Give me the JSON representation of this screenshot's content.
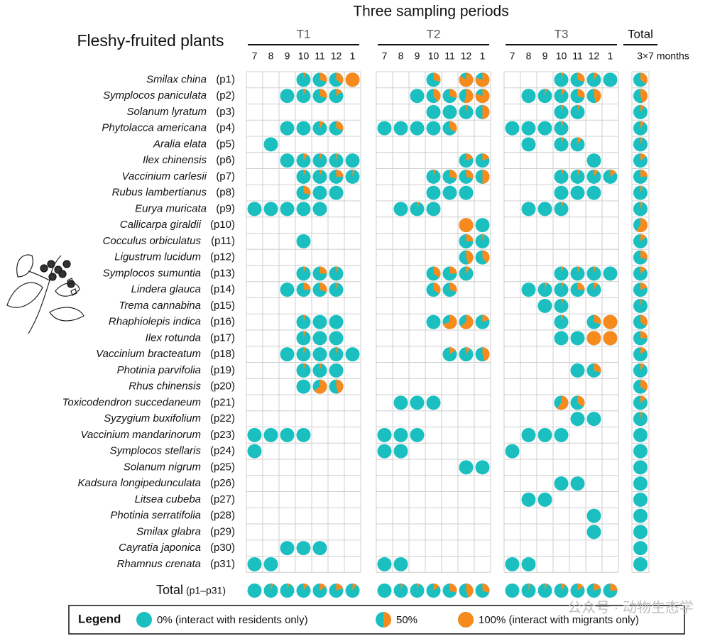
{
  "chart_data": {
    "type": "table",
    "title": "Three sampling periods",
    "row_header": "Fleshy-fruited plants",
    "total_header": "Total",
    "total_subheader": "3×7 months",
    "total_row_label": "Total",
    "total_row_sublabel": "(p1–p31)",
    "periods": [
      {
        "name": "T1",
        "months": [
          "7",
          "8",
          "9",
          "10",
          "11",
          "12",
          "1"
        ]
      },
      {
        "name": "T2",
        "months": [
          "7",
          "8",
          "9",
          "10",
          "11",
          "12",
          "1"
        ]
      },
      {
        "name": "T3",
        "months": [
          "7",
          "8",
          "9",
          "10",
          "11",
          "12",
          "1"
        ]
      }
    ],
    "value_meaning": "proportion of interactions with migrants (0 = residents only, 1 = migrants only); null = no record",
    "plants": [
      {
        "species": "Smilax china",
        "id": "(p1)",
        "T1": [
          null,
          null,
          null,
          0.05,
          0.3,
          0.35,
          1
        ],
        "T2": [
          null,
          null,
          null,
          0.3,
          null,
          0.85,
          0.8
        ],
        "T3": [
          null,
          null,
          null,
          0.05,
          0.3,
          0.1,
          0
        ],
        "total": 0.35
      },
      {
        "species": "Symplocos paniculata",
        "id": "(p2)",
        "T1": [
          null,
          null,
          0,
          0.05,
          0.3,
          0.15,
          null
        ],
        "T2": [
          null,
          null,
          0,
          0.4,
          0.3,
          0.55,
          0.8
        ],
        "T3": [
          null,
          0,
          0.05,
          0.1,
          0.3,
          0.45,
          null
        ],
        "total": 0.45
      },
      {
        "species": "Solanum lyratum",
        "id": "(p3)",
        "T1": [
          null,
          null,
          null,
          null,
          null,
          null,
          null
        ],
        "T2": [
          null,
          null,
          null,
          0,
          0,
          0.05,
          0.5
        ],
        "T3": [
          null,
          null,
          null,
          0.05,
          0.05,
          null,
          null
        ],
        "total": 0.1
      },
      {
        "species": "Phytolacca americana",
        "id": "(p4)",
        "T1": [
          null,
          null,
          0,
          0,
          0.1,
          0.3,
          null
        ],
        "T2": [
          0,
          0,
          0,
          0,
          0.35,
          null,
          null
        ],
        "T3": [
          0,
          0,
          0,
          0.05,
          null,
          null,
          null
        ],
        "total": 0.1
      },
      {
        "species": "Aralia elata",
        "id": "(p5)",
        "T1": [
          null,
          0,
          null,
          null,
          null,
          null,
          null
        ],
        "T2": [
          null,
          null,
          null,
          null,
          null,
          null,
          null
        ],
        "T3": [
          null,
          0,
          null,
          0.05,
          0.1,
          null,
          null
        ],
        "total": 0.05
      },
      {
        "species": "Ilex chinensis",
        "id": "(p6)",
        "T1": [
          null,
          null,
          0,
          0.1,
          0.05,
          0.05,
          0
        ],
        "T2": [
          null,
          null,
          null,
          null,
          null,
          0.2,
          0.2
        ],
        "T3": [
          null,
          null,
          null,
          null,
          null,
          0,
          null
        ],
        "total": 0.15
      },
      {
        "species": "Vaccinium carlesii",
        "id": "(p7)",
        "T1": [
          null,
          null,
          null,
          0.05,
          0.05,
          0.25,
          0.05
        ],
        "T2": [
          null,
          null,
          null,
          0.05,
          0.3,
          0.3,
          0.5
        ],
        "T3": [
          null,
          null,
          null,
          0.05,
          0.05,
          0.1,
          0.15
        ],
        "total": 0.25
      },
      {
        "species": "Rubus lambertianus",
        "id": "(p8)",
        "T1": [
          null,
          null,
          null,
          0.3,
          0,
          0,
          null
        ],
        "T2": [
          null,
          null,
          null,
          0,
          0,
          0,
          null
        ],
        "T3": [
          null,
          null,
          null,
          0,
          0,
          0,
          null
        ],
        "total": 0.05
      },
      {
        "species": "Eurya muricata",
        "id": "(p9)",
        "T1": [
          0,
          0,
          0,
          0,
          0,
          null,
          null
        ],
        "T2": [
          null,
          0,
          0.05,
          0,
          null,
          null,
          null
        ],
        "T3": [
          null,
          0,
          0,
          0.05,
          null,
          null,
          null
        ],
        "total": 0.05
      },
      {
        "species": "Callicarpa giraldii",
        "id": "(p10)",
        "T1": [
          null,
          null,
          null,
          null,
          null,
          null,
          null
        ],
        "T2": [
          null,
          null,
          null,
          null,
          null,
          1,
          0
        ],
        "T3": [
          null,
          null,
          null,
          null,
          null,
          null,
          null
        ],
        "total": 0.6
      },
      {
        "species": "Cocculus orbiculatus",
        "id": "(p11)",
        "T1": [
          null,
          null,
          null,
          0,
          null,
          null,
          null
        ],
        "T2": [
          null,
          null,
          null,
          null,
          null,
          0.25,
          0.05
        ],
        "T3": [
          null,
          null,
          null,
          null,
          null,
          null,
          null
        ],
        "total": 0.15
      },
      {
        "species": "Ligustrum lucidum",
        "id": "(p12)",
        "T1": [
          null,
          null,
          null,
          null,
          null,
          null,
          null
        ],
        "T2": [
          null,
          null,
          null,
          null,
          null,
          0.45,
          0.4
        ],
        "T3": [
          null,
          null,
          null,
          null,
          null,
          null,
          null
        ],
        "total": 0.3
      },
      {
        "species": "Symplocos sumuntia",
        "id": "(p13)",
        "T1": [
          null,
          null,
          null,
          0.05,
          0.25,
          0.05,
          null
        ],
        "T2": [
          null,
          null,
          null,
          0.35,
          0.25,
          0.1,
          null
        ],
        "T3": [
          null,
          null,
          null,
          0.05,
          0.05,
          0.05,
          0
        ],
        "total": 0.15
      },
      {
        "species": "Lindera glauca",
        "id": "(p14)",
        "T1": [
          null,
          null,
          0,
          0.25,
          0.3,
          0.05,
          null
        ],
        "T2": [
          null,
          null,
          null,
          0.35,
          0.3,
          null,
          null
        ],
        "T3": [
          null,
          0,
          0.05,
          0.05,
          0.25,
          0.1,
          null
        ],
        "total": 0.2
      },
      {
        "species": "Trema cannabina",
        "id": "(p15)",
        "T1": [
          null,
          null,
          null,
          null,
          null,
          null,
          null
        ],
        "T2": [
          null,
          null,
          null,
          null,
          null,
          null,
          null
        ],
        "T3": [
          null,
          null,
          0,
          0.05,
          null,
          null,
          null
        ],
        "total": 0.05
      },
      {
        "species": "Rhaphiolepis indica",
        "id": "(p16)",
        "T1": [
          null,
          null,
          null,
          0.05,
          0,
          0,
          null
        ],
        "T2": [
          null,
          null,
          null,
          0,
          0.7,
          0.65,
          0.2
        ],
        "T3": [
          null,
          null,
          null,
          0.05,
          null,
          0.3,
          1
        ],
        "total": 0.35
      },
      {
        "species": "Ilex rotunda",
        "id": "(p17)",
        "T1": [
          null,
          null,
          null,
          0.05,
          0,
          0,
          null
        ],
        "T2": [
          null,
          null,
          null,
          null,
          null,
          null,
          null
        ],
        "T3": [
          null,
          null,
          null,
          0,
          0,
          1,
          1
        ],
        "total": 0.25
      },
      {
        "species": "Vaccinium bracteatum",
        "id": "(p18)",
        "T1": [
          null,
          null,
          0,
          0.05,
          0,
          0.05,
          0
        ],
        "T2": [
          null,
          null,
          null,
          null,
          0.15,
          0.1,
          0.45
        ],
        "T3": [
          null,
          null,
          null,
          null,
          null,
          null,
          null
        ],
        "total": 0.15
      },
      {
        "species": "Photinia parvifolia",
        "id": "(p19)",
        "T1": [
          null,
          null,
          null,
          0.05,
          0.05,
          0,
          null
        ],
        "T2": [
          null,
          null,
          null,
          null,
          null,
          null,
          null
        ],
        "T3": [
          null,
          null,
          null,
          null,
          0,
          0.3,
          null
        ],
        "total": 0.1
      },
      {
        "species": "Rhus chinensis",
        "id": "(p20)",
        "T1": [
          null,
          null,
          null,
          0,
          0.65,
          0.45,
          null
        ],
        "T2": [
          null,
          null,
          null,
          null,
          null,
          null,
          null
        ],
        "T3": [
          null,
          null,
          null,
          null,
          null,
          null,
          null
        ],
        "total": 0.35
      },
      {
        "species": "Toxicodendron succedaneum",
        "id": "(p21)",
        "T1": [
          null,
          null,
          null,
          null,
          null,
          null,
          null
        ],
        "T2": [
          null,
          0,
          0,
          0,
          null,
          null,
          null
        ],
        "T3": [
          null,
          null,
          null,
          0.6,
          0.35,
          null,
          null
        ],
        "total": 0.15
      },
      {
        "species": "Syzygium buxifolium",
        "id": "(p22)",
        "T1": [
          null,
          null,
          null,
          null,
          null,
          null,
          null
        ],
        "T2": [
          null,
          null,
          null,
          null,
          null,
          null,
          null
        ],
        "T3": [
          null,
          null,
          null,
          null,
          0,
          0,
          null
        ],
        "total": 0.05
      },
      {
        "species": "Vaccinium mandarinorum",
        "id": "(p23)",
        "T1": [
          0,
          0,
          0,
          0,
          null,
          null,
          null
        ],
        "T2": [
          0,
          0,
          0,
          null,
          null,
          null,
          null
        ],
        "T3": [
          null,
          0,
          0,
          0,
          null,
          null,
          null
        ],
        "total": 0
      },
      {
        "species": "Symplocos stellaris",
        "id": "(p24)",
        "T1": [
          0,
          null,
          null,
          null,
          null,
          null,
          null
        ],
        "T2": [
          0,
          0,
          null,
          null,
          null,
          null,
          null
        ],
        "T3": [
          0,
          null,
          null,
          null,
          null,
          null,
          null
        ],
        "total": 0
      },
      {
        "species": "Solanum nigrum",
        "id": "(p25)",
        "T1": [
          null,
          null,
          null,
          null,
          null,
          null,
          null
        ],
        "T2": [
          null,
          null,
          null,
          null,
          null,
          0,
          0
        ],
        "T3": [
          null,
          null,
          null,
          null,
          null,
          null,
          null
        ],
        "total": 0
      },
      {
        "species": "Kadsura longipedunculata",
        "id": "(p26)",
        "T1": [
          null,
          null,
          null,
          null,
          null,
          null,
          null
        ],
        "T2": [
          null,
          null,
          null,
          null,
          null,
          null,
          null
        ],
        "T3": [
          null,
          null,
          null,
          0,
          0,
          null,
          null
        ],
        "total": 0
      },
      {
        "species": "Litsea cubeba",
        "id": "(p27)",
        "T1": [
          null,
          null,
          null,
          null,
          null,
          null,
          null
        ],
        "T2": [
          null,
          null,
          null,
          null,
          null,
          null,
          null
        ],
        "T3": [
          null,
          0,
          0,
          null,
          null,
          null,
          null
        ],
        "total": 0
      },
      {
        "species": "Photinia serratifolia",
        "id": "(p28)",
        "T1": [
          null,
          null,
          null,
          null,
          null,
          null,
          null
        ],
        "T2": [
          null,
          null,
          null,
          null,
          null,
          null,
          null
        ],
        "T3": [
          null,
          null,
          null,
          null,
          null,
          0,
          null
        ],
        "total": 0
      },
      {
        "species": "Smilax glabra",
        "id": "(p29)",
        "T1": [
          null,
          null,
          null,
          null,
          null,
          null,
          null
        ],
        "T2": [
          null,
          null,
          null,
          null,
          null,
          null,
          null
        ],
        "T3": [
          null,
          null,
          null,
          null,
          null,
          0,
          null
        ],
        "total": 0
      },
      {
        "species": "Cayratia japonica",
        "id": "(p30)",
        "T1": [
          null,
          null,
          0,
          0,
          0,
          null,
          null
        ],
        "T2": [
          null,
          null,
          null,
          null,
          null,
          null,
          null
        ],
        "T3": [
          null,
          null,
          null,
          null,
          null,
          null,
          null
        ],
        "total": 0
      },
      {
        "species": "Rhamnus crenata",
        "id": "(p31)",
        "T1": [
          0,
          0,
          null,
          null,
          null,
          null,
          null
        ],
        "T2": [
          0,
          0,
          null,
          null,
          null,
          null,
          null
        ],
        "T3": [
          0,
          0,
          null,
          null,
          null,
          null,
          null
        ],
        "total": 0
      }
    ],
    "totals": {
      "T1": [
        0,
        0.05,
        0.05,
        0.1,
        0.15,
        0.2,
        0.1
      ],
      "T2": [
        0,
        0.05,
        0.05,
        0.15,
        0.3,
        0.45,
        0.3
      ],
      "T3": [
        0,
        0.05,
        0.05,
        0.1,
        0.15,
        0.2,
        0.25
      ]
    },
    "legend": {
      "title": "Legend",
      "items": [
        {
          "value": 0,
          "label": "0% (interact with residents only)"
        },
        {
          "value": 0.5,
          "label": "50%"
        },
        {
          "value": 1,
          "label": "100% (interact with migrants only)"
        }
      ]
    },
    "colors": {
      "resident": "#1bbfbf",
      "migrant": "#f78a1d",
      "grid": "#cfcfcf",
      "text": "#111111"
    }
  },
  "watermark": "公众号 · 动物生态学"
}
